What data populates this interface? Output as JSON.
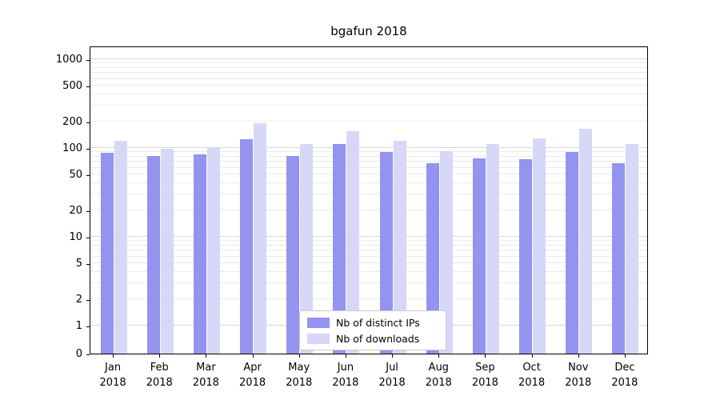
{
  "chart_data": {
    "type": "bar",
    "title": "bgafun 2018",
    "categories": [
      "Jan 2018",
      "Feb 2018",
      "Mar 2018",
      "Apr 2018",
      "May 2018",
      "Jun 2018",
      "Jul 2018",
      "Aug 2018",
      "Sep 2018",
      "Oct 2018",
      "Nov 2018",
      "Dec 2018"
    ],
    "series": [
      {
        "name": "Nb of distinct IPs",
        "color": "#9393f0",
        "values": [
          88,
          82,
          84,
          125,
          82,
          112,
          90,
          68,
          77,
          75,
          90,
          68
        ]
      },
      {
        "name": "Nb of downloads",
        "color": "#d7d7f8",
        "values": [
          120,
          97,
          100,
          190,
          110,
          155,
          120,
          93,
          110,
          127,
          165,
          110
        ]
      }
    ],
    "yaxis": {
      "scale": "symlog",
      "ticks": [
        0,
        1,
        2,
        5,
        10,
        20,
        50,
        100,
        200,
        500,
        1000
      ],
      "range": [
        0,
        1000
      ]
    },
    "xlabel": "",
    "ylabel": "",
    "grid": "horizontal-log",
    "legend": {
      "position": "lower center",
      "border": true
    },
    "grid_colors": {
      "major": "#d9d9d9",
      "minor": "#ebebeb"
    }
  }
}
